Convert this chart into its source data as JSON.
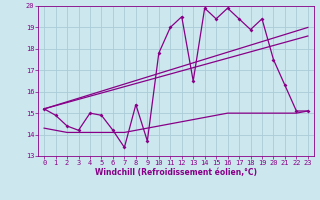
{
  "xlabel": "Windchill (Refroidissement éolien,°C)",
  "bg_color": "#cce8ee",
  "grid_color": "#aaccd8",
  "line_color": "#880088",
  "xlim": [
    -0.5,
    23.5
  ],
  "ylim": [
    13,
    20
  ],
  "xticks": [
    0,
    1,
    2,
    3,
    4,
    5,
    6,
    7,
    8,
    9,
    10,
    11,
    12,
    13,
    14,
    15,
    16,
    17,
    18,
    19,
    20,
    21,
    22,
    23
  ],
  "yticks": [
    13,
    14,
    15,
    16,
    17,
    18,
    19,
    20
  ],
  "curve1_x": [
    0,
    1,
    2,
    3,
    4,
    5,
    6,
    7,
    8,
    9,
    10,
    11,
    12,
    13,
    14,
    15,
    16,
    17,
    18,
    19,
    20,
    21,
    22,
    23
  ],
  "curve1_y": [
    15.2,
    14.9,
    14.4,
    14.2,
    15.0,
    14.9,
    14.2,
    13.4,
    15.4,
    13.7,
    17.8,
    19.0,
    19.5,
    16.5,
    19.9,
    19.4,
    19.9,
    19.4,
    18.9,
    19.4,
    17.5,
    16.3,
    15.1,
    15.1
  ],
  "curve2_x": [
    0,
    23
  ],
  "curve2_y": [
    15.2,
    19.0
  ],
  "curve3_x": [
    0,
    23
  ],
  "curve3_y": [
    15.2,
    18.6
  ],
  "curve4_x": [
    0,
    1,
    2,
    3,
    4,
    5,
    6,
    7,
    8,
    9,
    10,
    11,
    12,
    13,
    14,
    15,
    16,
    17,
    18,
    19,
    20,
    21,
    22,
    23
  ],
  "curve4_y": [
    14.3,
    14.2,
    14.1,
    14.1,
    14.1,
    14.1,
    14.1,
    14.1,
    14.2,
    14.3,
    14.4,
    14.5,
    14.6,
    14.7,
    14.8,
    14.9,
    15.0,
    15.0,
    15.0,
    15.0,
    15.0,
    15.0,
    15.0,
    15.1
  ],
  "tick_fontsize": 5.0,
  "xlabel_fontsize": 5.5
}
